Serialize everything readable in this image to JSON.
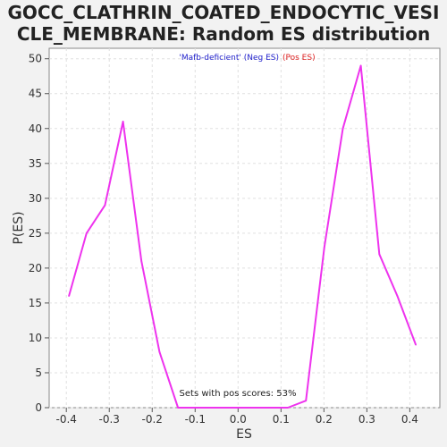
{
  "chart_data": {
    "type": "line",
    "title": "GOCC_CLATHRIN_COATED_ENDOCYTIC_VESI\nCLE_MEMBRANE: Random ES distribution",
    "xlabel": "ES",
    "ylabel": "P(ES)",
    "xlim": [
      -0.44,
      0.47
    ],
    "ylim": [
      0,
      51.5
    ],
    "xticks": [
      -0.4,
      -0.3,
      -0.2,
      -0.1,
      0.0,
      0.1,
      0.2,
      0.3,
      0.4
    ],
    "xtick_labels": [
      "-0.4",
      "-0.3",
      "-0.2",
      "-0.1",
      "0.0",
      "0.1",
      "0.2",
      "0.3",
      "0.4"
    ],
    "yticks": [
      0,
      5,
      10,
      15,
      20,
      25,
      30,
      35,
      40,
      45,
      50
    ],
    "ytick_labels": [
      "0",
      "5",
      "10",
      "15",
      "20",
      "25",
      "30",
      "35",
      "40",
      "45",
      "50"
    ],
    "grid": true,
    "legend": {
      "placement": "top-center",
      "entries": [
        {
          "text": "'Mafb-deficient' (Neg ES)",
          "color": "#2222cc"
        },
        {
          "text": "(Pos ES)",
          "color": "#dd2222"
        }
      ]
    },
    "annotation": "Sets with pos scores: 53%",
    "series": [
      {
        "color": "#ee33ee",
        "x": [
          -0.394,
          -0.353,
          -0.31,
          -0.268,
          -0.225,
          -0.183,
          -0.14,
          -0.097,
          -0.055,
          -0.012,
          0.03,
          0.073,
          0.116,
          0.158,
          0.201,
          0.244,
          0.286,
          0.329,
          0.371,
          0.414
        ],
        "y": [
          16,
          25,
          29,
          41,
          21,
          8,
          0,
          0,
          0,
          0,
          0,
          0,
          0,
          1,
          23,
          40,
          49,
          22,
          16,
          9
        ]
      }
    ]
  },
  "colors": {
    "background": "#f2f2f2",
    "plot_background": "#ffffff",
    "line": "#ee33ee",
    "grid": "#e0e0e0"
  }
}
